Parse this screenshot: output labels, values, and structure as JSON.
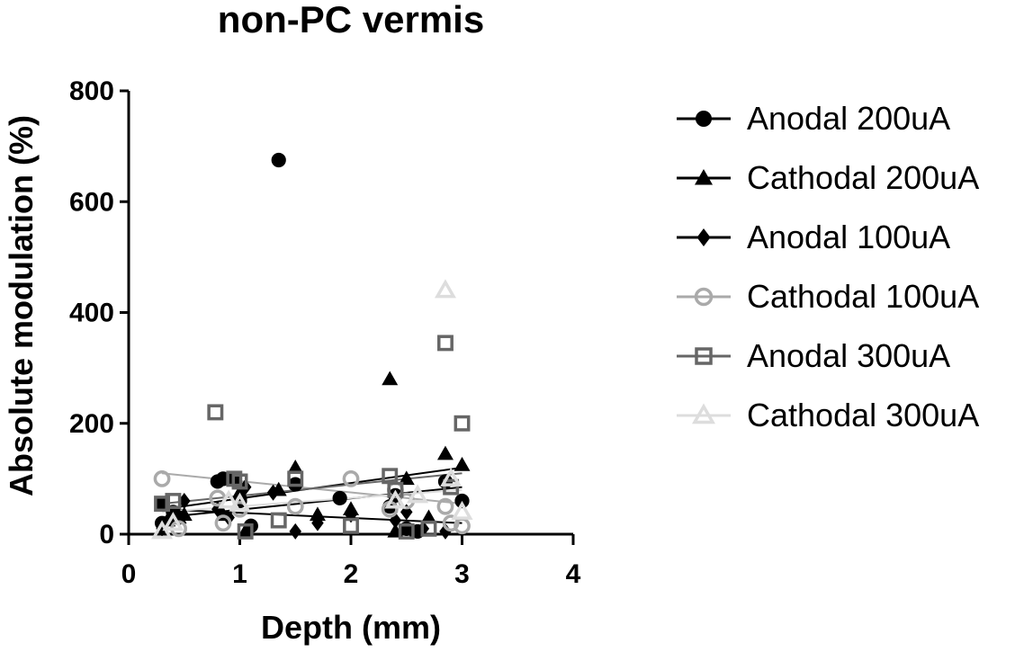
{
  "chart_data": {
    "type": "scatter",
    "title": "non-PC vermis",
    "xlabel": "Depth (mm)",
    "ylabel": "Absolute modulation (%)",
    "xlim": [
      0,
      4
    ],
    "ylim": [
      0,
      800
    ],
    "xticks": [
      "0",
      "1",
      "2",
      "3",
      "4"
    ],
    "yticks": [
      "0",
      "200",
      "400",
      "600",
      "800"
    ],
    "grid": false,
    "legend_position": "right",
    "series": [
      {
        "name": "Anodal 200uA",
        "marker": "circle-filled",
        "color": "#000000",
        "points": [
          [
            0.3,
            55
          ],
          [
            0.3,
            20
          ],
          [
            0.4,
            40
          ],
          [
            0.45,
            30
          ],
          [
            0.8,
            95
          ],
          [
            0.85,
            100
          ],
          [
            0.95,
            100
          ],
          [
            1.0,
            60
          ],
          [
            1.1,
            15
          ],
          [
            1.35,
            675
          ],
          [
            1.5,
            90
          ],
          [
            1.9,
            65
          ],
          [
            2.35,
            50
          ],
          [
            2.4,
            70
          ],
          [
            2.5,
            10
          ],
          [
            2.6,
            5
          ],
          [
            2.85,
            95
          ],
          [
            3.0,
            60
          ]
        ],
        "fit": [
          [
            0.3,
            30
          ],
          [
            3.0,
            85
          ]
        ]
      },
      {
        "name": "Cathodal 200uA",
        "marker": "triangle-filled",
        "color": "#000000",
        "points": [
          [
            0.35,
            25
          ],
          [
            0.45,
            30
          ],
          [
            0.5,
            35
          ],
          [
            0.85,
            35
          ],
          [
            1.0,
            75
          ],
          [
            1.05,
            5
          ],
          [
            1.35,
            80
          ],
          [
            1.5,
            120
          ],
          [
            1.7,
            35
          ],
          [
            2.0,
            45
          ],
          [
            2.35,
            280
          ],
          [
            2.4,
            5
          ],
          [
            2.5,
            100
          ],
          [
            2.7,
            30
          ],
          [
            2.85,
            145
          ],
          [
            3.0,
            125
          ]
        ],
        "fit": [
          [
            0.3,
            45
          ],
          [
            3.0,
            120
          ]
        ]
      },
      {
        "name": "Anodal 100uA",
        "marker": "diamond-filled",
        "color": "#000000",
        "points": [
          [
            0.3,
            10
          ],
          [
            0.4,
            35
          ],
          [
            0.5,
            60
          ],
          [
            0.8,
            45
          ],
          [
            0.9,
            30
          ],
          [
            1.0,
            65
          ],
          [
            1.05,
            85
          ],
          [
            1.3,
            75
          ],
          [
            1.5,
            5
          ],
          [
            1.7,
            20
          ],
          [
            2.0,
            35
          ],
          [
            2.4,
            25
          ],
          [
            2.5,
            40
          ],
          [
            2.55,
            5
          ],
          [
            2.65,
            10
          ],
          [
            2.85,
            5
          ]
        ],
        "fit": [
          [
            0.3,
            45
          ],
          [
            3.0,
            20
          ]
        ]
      },
      {
        "name": "Cathodal 100uA",
        "marker": "circle-open",
        "color": "#aaaaaa",
        "points": [
          [
            0.3,
            100
          ],
          [
            0.45,
            10
          ],
          [
            0.8,
            65
          ],
          [
            0.85,
            20
          ],
          [
            1.0,
            45
          ],
          [
            1.5,
            50
          ],
          [
            2.0,
            100
          ],
          [
            2.35,
            45
          ],
          [
            2.4,
            80
          ],
          [
            2.5,
            60
          ],
          [
            2.85,
            50
          ],
          [
            2.9,
            20
          ],
          [
            3.0,
            15
          ]
        ],
        "fit": [
          [
            0.3,
            110
          ],
          [
            3.0,
            55
          ]
        ]
      },
      {
        "name": "Anodal 300uA",
        "marker": "square-open",
        "color": "#666666",
        "points": [
          [
            0.3,
            55
          ],
          [
            0.4,
            60
          ],
          [
            0.78,
            220
          ],
          [
            0.95,
            100
          ],
          [
            1.0,
            95
          ],
          [
            1.05,
            5
          ],
          [
            1.35,
            25
          ],
          [
            1.5,
            100
          ],
          [
            2.0,
            15
          ],
          [
            2.35,
            105
          ],
          [
            2.4,
            80
          ],
          [
            2.5,
            5
          ],
          [
            2.7,
            10
          ],
          [
            2.85,
            345
          ],
          [
            2.9,
            85
          ],
          [
            3.0,
            200
          ]
        ],
        "fit": [
          [
            0.3,
            55
          ],
          [
            3.0,
            110
          ]
        ]
      },
      {
        "name": "Cathodal 300uA",
        "marker": "triangle-open",
        "color": "#dddddd",
        "points": [
          [
            0.3,
            5
          ],
          [
            0.4,
            20
          ],
          [
            0.9,
            60
          ],
          [
            1.0,
            55
          ],
          [
            2.4,
            60
          ],
          [
            2.6,
            70
          ],
          [
            2.85,
            440
          ],
          [
            2.9,
            100
          ],
          [
            3.0,
            40
          ]
        ],
        "fit": [
          [
            0.3,
            40
          ],
          [
            3.0,
            80
          ]
        ]
      }
    ]
  }
}
